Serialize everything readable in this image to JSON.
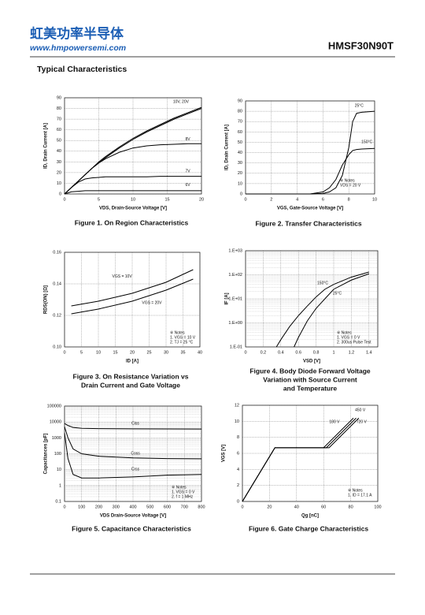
{
  "header": {
    "company": "虹美功率半导体",
    "website": "www.hmpowersemi.com",
    "part": "HMSF30N90T"
  },
  "section_title": "Typical Characteristics",
  "chart_data": [
    {
      "type": "line",
      "title": [
        "Figure 1. On Region Characteristics"
      ],
      "xlabel": "VDS, Drain-Source Voltage  [V]",
      "ylabel": "ID, Drain Current  [A]",
      "xlim": [
        0,
        20
      ],
      "xticks": [
        0,
        5,
        10,
        15,
        20
      ],
      "ylim": [
        0,
        90
      ],
      "yticks": [
        0,
        10,
        20,
        30,
        40,
        50,
        60,
        70,
        80,
        90
      ],
      "grid": true,
      "x": [
        0,
        1,
        2,
        3,
        4,
        5,
        6,
        8,
        10,
        12,
        14,
        16,
        18,
        20
      ],
      "series": [
        {
          "name": "10V, 20V",
          "color": "#000000",
          "values": [
            0,
            6,
            12,
            18,
            24,
            29,
            34,
            43,
            51,
            58,
            64,
            70,
            75,
            80
          ]
        },
        {
          "color": "#000000",
          "values": [
            0,
            6,
            12,
            18,
            24,
            30,
            35,
            44,
            52,
            59,
            65,
            71,
            76,
            81
          ]
        },
        {
          "name": "8V",
          "color": "#000000",
          "values": [
            0,
            6,
            12,
            18,
            24,
            29,
            33,
            39,
            43,
            45,
            46,
            46.5,
            47,
            47
          ]
        },
        {
          "name": "7V",
          "color": "#000000",
          "values": [
            0,
            6,
            11,
            14,
            15,
            15.5,
            16,
            16,
            16,
            16,
            16.5,
            16.5,
            16.5,
            16.5
          ]
        },
        {
          "name": "6V",
          "color": "#000000",
          "values": [
            0,
            2,
            2.5,
            3,
            3,
            3,
            3,
            3,
            3,
            3,
            3,
            3,
            3,
            3
          ]
        }
      ]
    },
    {
      "type": "line",
      "title": [
        "Figure 2. Transfer Characteristics"
      ],
      "xlabel": "VGS, Gate-Source Voltage [V]",
      "ylabel": "ID, Drain Current  [A]",
      "xlim": [
        0,
        10
      ],
      "xticks": [
        0,
        2,
        4,
        6,
        8,
        10
      ],
      "ylim": [
        0,
        90
      ],
      "yticks": [
        0,
        10,
        20,
        30,
        40,
        50,
        60,
        70,
        80,
        90
      ],
      "grid": true,
      "x": [
        0,
        5,
        6,
        6.5,
        7,
        7.5,
        8,
        8.3,
        8.6,
        9,
        10
      ],
      "notes": [
        "※ Notes",
        "VDS = 20 V"
      ],
      "series": [
        {
          "name": "25°C",
          "color": "#000000",
          "values": [
            0,
            0,
            0.5,
            2,
            6,
            18,
            45,
            70,
            78,
            79,
            80
          ]
        },
        {
          "name": "150°C",
          "color": "#000000",
          "values": [
            0,
            0,
            2,
            6,
            14,
            28,
            38,
            42,
            43,
            43.5,
            44
          ]
        }
      ]
    },
    {
      "type": "line",
      "title": [
        "Figure 3. On Resistance Variation vs",
        "Drain Current and Gate Voltage"
      ],
      "xlabel": "ID  [A]",
      "ylabel": "RDS(ON) [Ω]",
      "xlim": [
        0,
        40
      ],
      "xticks": [
        0,
        5,
        10,
        15,
        20,
        25,
        30,
        35,
        40
      ],
      "ylim": [
        0.1,
        0.16
      ],
      "yticks": [
        {
          "value": 0.1,
          "label": "0.10"
        },
        0.12,
        0.14,
        0.16
      ],
      "grid": true,
      "x": [
        2,
        10,
        20,
        30,
        38
      ],
      "notes": [
        "※ Notes",
        "1. VGS = 10 V",
        "2. TJ = 25 °C"
      ],
      "series": [
        {
          "name": "VGS = 10V",
          "color": "#000000",
          "values": [
            0.126,
            0.129,
            0.134,
            0.141,
            0.149
          ]
        },
        {
          "name": "VGS = 20V",
          "color": "#000000",
          "values": [
            0.121,
            0.124,
            0.129,
            0.136,
            0.143
          ]
        }
      ]
    },
    {
      "type": "line",
      "title": [
        "Figure 4. Body Diode Forward Voltage",
        "Variation with Source Current",
        "and Temperature"
      ],
      "xlabel": "VSD [V]",
      "ylabel": "IF [A]",
      "xlim": [
        0,
        1.5
      ],
      "xticks": [
        0,
        0.2,
        0.4,
        0.6,
        0.8,
        1,
        1.2,
        1.4
      ],
      "ylog": true,
      "ylim": [
        0.1,
        1000
      ],
      "yticks": [
        {
          "value": 0.1,
          "label": "1.E-01"
        },
        {
          "value": 1,
          "label": "1.E+00"
        },
        {
          "value": 10,
          "label": "1.E+01"
        },
        {
          "value": 100,
          "label": "1.E+02"
        },
        {
          "value": 1000,
          "label": "1.E+03"
        }
      ],
      "grid": true,
      "notes": [
        "※ Notes",
        "1. VGS = 0 V",
        "2. 300us Pulse Test"
      ],
      "series": [
        {
          "name": "150°C",
          "color": "#000000",
          "x": [
            0.35,
            0.4,
            0.5,
            0.6,
            0.7,
            0.8,
            0.9,
            1,
            1.2,
            1.4
          ],
          "values": [
            0.1,
            0.2,
            0.7,
            2,
            5,
            12,
            25,
            40,
            80,
            130
          ]
        },
        {
          "name": "25°C",
          "color": "#000000",
          "x": [
            0.55,
            0.6,
            0.7,
            0.8,
            0.9,
            1,
            1.2,
            1.4
          ],
          "values": [
            0.1,
            0.25,
            1.2,
            4,
            10,
            25,
            60,
            110
          ]
        }
      ]
    },
    {
      "type": "line",
      "title": [
        "Figure 5. Capacitance Characteristics"
      ],
      "xlabel": "VDS Drain-Source Voltage [V]",
      "ylabel": "Capacitances [pF]",
      "xlim": [
        0,
        800
      ],
      "xticks": [
        0,
        100,
        200,
        300,
        400,
        500,
        600,
        700,
        800
      ],
      "ylog": true,
      "ylim": [
        0.1,
        100000
      ],
      "yticks": [
        0.1,
        1,
        10,
        100,
        1000,
        10000,
        100000
      ],
      "grid": true,
      "x": [
        0,
        20,
        50,
        100,
        200,
        400,
        600,
        800
      ],
      "notes": [
        "※ Notes",
        "1. VGS = 0 V",
        "2. f = 1 MHz"
      ],
      "series": [
        {
          "name": "Ciss",
          "color": "#000000",
          "values": [
            8000,
            6000,
            4500,
            4000,
            3800,
            3700,
            3650,
            3600
          ]
        },
        {
          "name": "Coss",
          "color": "#000000",
          "values": [
            5000,
            1000,
            200,
            100,
            70,
            55,
            50,
            48
          ]
        },
        {
          "name": "Crss",
          "color": "#000000",
          "values": [
            2000,
            50,
            5,
            3,
            3,
            3.5,
            4.5,
            5
          ]
        }
      ]
    },
    {
      "type": "line",
      "title": [
        "Figure 6. Gate Charge Characteristics"
      ],
      "xlabel": "Qg [nC]",
      "ylabel": "VGS [V]",
      "xlim": [
        0,
        100
      ],
      "xticks": [
        0,
        20,
        40,
        60,
        80,
        100
      ],
      "ylim": [
        0,
        12
      ],
      "yticks": [
        0,
        2,
        4,
        6,
        8,
        10,
        12
      ],
      "grid": true,
      "notes": [
        "※ Notes",
        "1. ID = 17.1 A"
      ],
      "series": [
        {
          "name": "180 V",
          "color": "#000000",
          "x": [
            0,
            24,
            60,
            82
          ],
          "values": [
            0,
            6.7,
            6.7,
            10.4
          ]
        },
        {
          "name": "720 V",
          "color": "#000000",
          "x": [
            0,
            24,
            64,
            86
          ],
          "values": [
            0,
            6.7,
            6.7,
            10.4
          ]
        },
        {
          "name": "450 V",
          "color": "#000000",
          "x": [
            0,
            24,
            62,
            84
          ],
          "values": [
            0,
            6.7,
            6.7,
            10.4
          ]
        }
      ]
    }
  ]
}
